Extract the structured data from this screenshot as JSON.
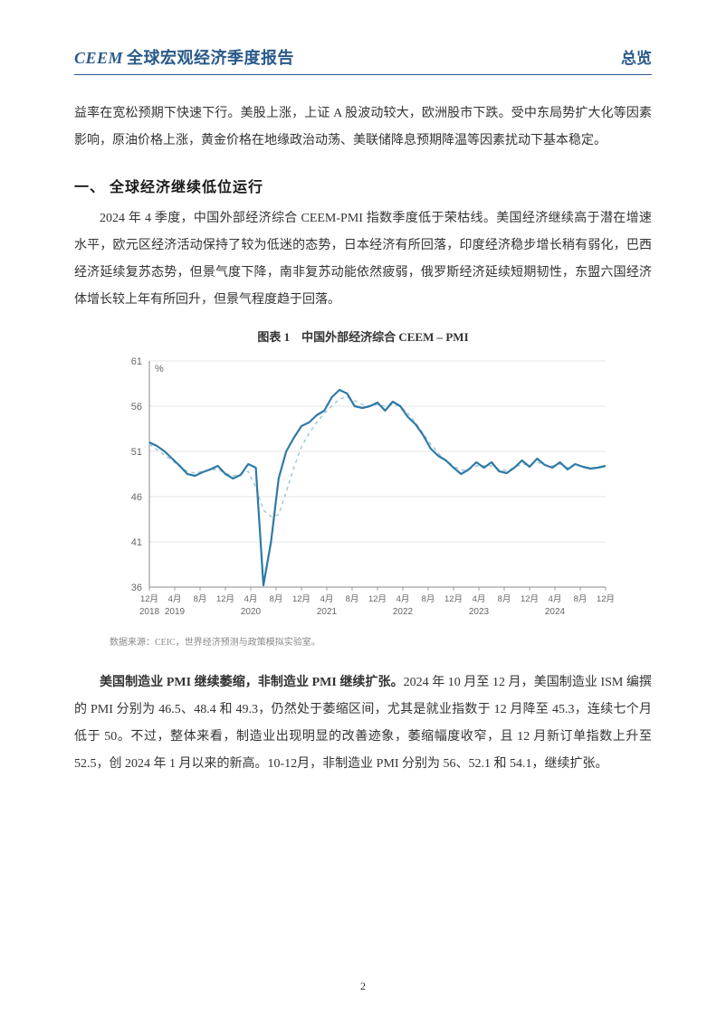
{
  "header": {
    "left_en": "CEEM",
    "left_cn": "全球宏观经济季度报告",
    "right": "总览"
  },
  "intro_para": "益率在宽松预期下快速下行。美股上涨，上证 A 股波动较大，欧洲股市下跌。受中东局势扩大化等因素影响，原油价格上涨，黄金价格在地缘政治动荡、美联储降息预期降温等因素扰动下基本稳定。",
  "section_heading": "一、 全球经济继续低位运行",
  "section_para": "2024 年 4 季度，中国外部经济综合 CEEM-PMI 指数季度低于荣枯线。美国经济继续高于潜在增速水平，欧元区经济活动保持了较为低迷的态势，日本经济有所回落，印度经济稳步增长稍有弱化，巴西经济延续复苏态势，但景气度下降，南非复苏动能依然疲弱，俄罗斯经济延续短期韧性，东盟六国经济体增长较上年有所回升，但景气程度趋于回落。",
  "chart": {
    "title": "图表 1　中国外部经济综合 CEEM – PMI",
    "source": "数据来源：CEIC，世界经济预测与政策模拟实验室。",
    "y_label": "%",
    "y_min": 36,
    "y_max": 61,
    "y_ticks": [
      36,
      41,
      46,
      51,
      56,
      61
    ],
    "x_labels_top": [
      "12月",
      "4月",
      "8月",
      "12月",
      "4月",
      "8月",
      "12月",
      "4月",
      "8月",
      "12月",
      "4月",
      "8月",
      "12月",
      "4月",
      "8月",
      "12月",
      "4月",
      "8月",
      "12月"
    ],
    "x_labels_year": [
      "2018",
      "2019",
      "2020",
      "2021",
      "2022",
      "2023",
      "2024"
    ],
    "x_year_positions": [
      0,
      1,
      4,
      7,
      10,
      13,
      16
    ],
    "colors": {
      "main_line": "#2f7aa6",
      "dashed_line": "#9ec5d8",
      "axis": "#888888",
      "grid": "#dddddd",
      "tick_text": "#666666",
      "background": "#ffffff"
    },
    "line_width_main": 2.2,
    "line_width_dashed": 1.4,
    "series_main": [
      52.0,
      51.6,
      51.0,
      50.2,
      49.4,
      48.5,
      48.3,
      48.7,
      49.0,
      49.4,
      48.5,
      48.0,
      48.4,
      49.6,
      49.2,
      36.2,
      41.0,
      48.0,
      51.0,
      52.5,
      53.8,
      54.2,
      55.0,
      55.5,
      57.0,
      57.8,
      57.4,
      56.0,
      55.8,
      56.0,
      56.4,
      55.5,
      56.5,
      56.0,
      54.8,
      54.0,
      52.8,
      51.3,
      50.5,
      50.0,
      49.2,
      48.5,
      49.0,
      49.8,
      49.2,
      49.8,
      48.8,
      48.6,
      49.2,
      50.0,
      49.3,
      50.2,
      49.5,
      49.2,
      49.8,
      49.0,
      49.6,
      49.3,
      49.1,
      49.2,
      49.4
    ],
    "series_dashed": [
      51.8,
      51.2,
      50.6,
      50.0,
      49.3,
      48.8,
      48.6,
      48.8,
      49.0,
      49.0,
      48.6,
      48.3,
      48.5,
      48.8,
      47.0,
      44.5,
      43.8,
      44.0,
      46.5,
      49.2,
      51.5,
      53.0,
      54.2,
      55.2,
      56.0,
      56.8,
      57.0,
      56.6,
      56.2,
      56.0,
      56.2,
      56.0,
      56.2,
      56.0,
      55.2,
      54.2,
      53.0,
      51.8,
      50.8,
      50.0,
      49.4,
      48.9,
      49.0,
      49.4,
      49.4,
      49.4,
      49.0,
      48.9,
      49.2,
      49.6,
      49.5,
      49.8,
      49.5,
      49.4,
      49.6,
      49.2,
      49.5,
      49.3,
      49.2,
      49.2,
      49.3
    ]
  },
  "pmi_para_bold": "美国制造业 PMI 继续萎缩，非制造业 PMI 继续扩张。",
  "pmi_para_rest": "2024 年 10 月至 12 月，美国制造业 ISM 编撰的 PMI 分别为 46.5、48.4 和 49.3，仍然处于萎缩区间，尤其是就业指数于 12 月降至 45.3，连续七个月低于 50。不过，整体来看，制造业出现明显的改善迹象，萎缩幅度收窄，且 12 月新订单指数上升至 52.5，创 2024 年 1 月以来的新高。10-12月，非制造业 PMI 分别为 56、52.1 和 54.1，继续扩张。",
  "page_number": "2"
}
